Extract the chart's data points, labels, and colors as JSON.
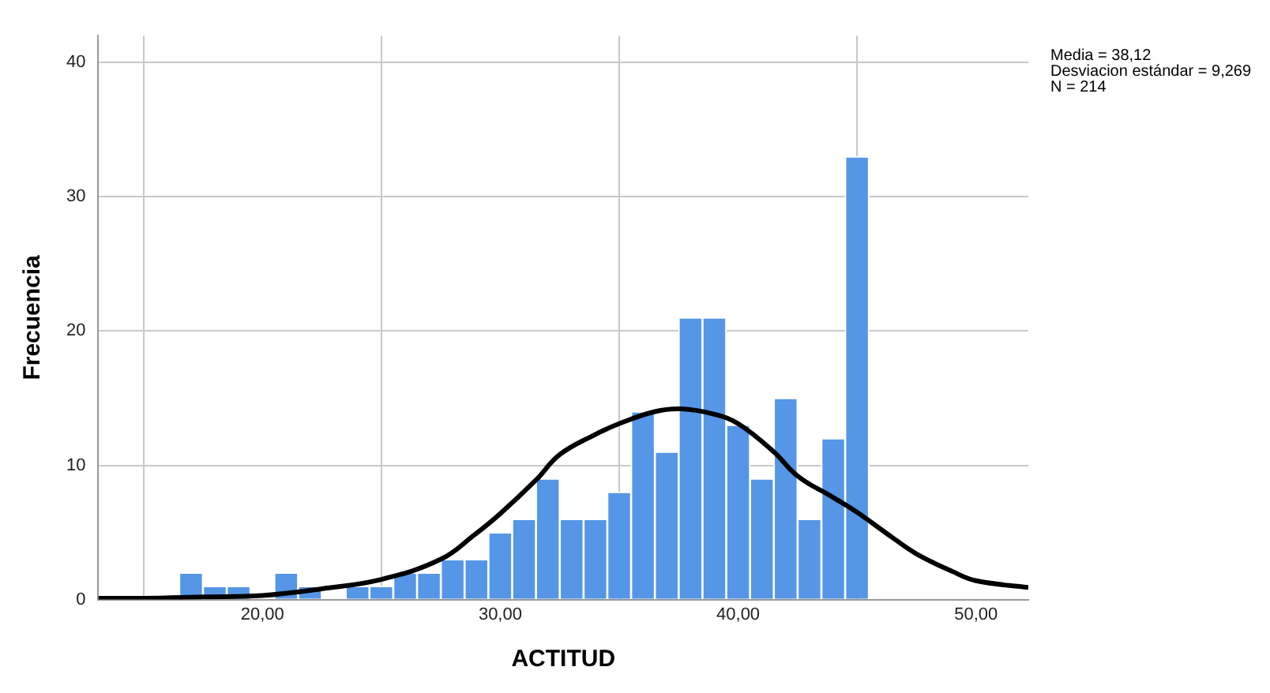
{
  "chart_data": {
    "type": "histogram",
    "xlabel": "ACTITUD",
    "ylabel": "Frecuencia",
    "bins": [
      16.5,
      17.5,
      18.5,
      19.5,
      20.5,
      21.5,
      22.5,
      23.5,
      24.5,
      25.5,
      26.5,
      27.5,
      28.5,
      29.5,
      30.5,
      31.5,
      32.5,
      33.5,
      34.5,
      35.5,
      36.5,
      37.5,
      38.5,
      39.5,
      40.5,
      41.5,
      42.5,
      43.5,
      44.5,
      45.5
    ],
    "values": [
      2,
      1,
      1,
      0,
      2,
      1,
      0,
      1,
      1,
      2,
      2,
      3,
      3,
      5,
      6,
      9,
      6,
      6,
      8,
      14,
      11,
      21,
      21,
      13,
      9,
      15,
      6,
      12,
      33
    ],
    "color": "#5596e6",
    "series": [
      {
        "type": "line",
        "color": "#000000",
        "marker": "none",
        "x": [
          13.1,
          15,
          17.5,
          20,
          22.5,
          25,
          27.5,
          28.9,
          30,
          31.5,
          32.5,
          34,
          35,
          36.5,
          37.6,
          39,
          40,
          41.5,
          42.5,
          44,
          45,
          46.5,
          47.5,
          49,
          50,
          52.2
        ],
        "values": [
          0.1,
          0.1,
          0.2,
          0.3,
          0.8,
          1.5,
          3,
          4.8,
          6.4,
          8.9,
          10.8,
          12.3,
          13.1,
          14,
          14.2,
          13.8,
          13.1,
          11,
          9.2,
          7.6,
          6.5,
          4.6,
          3.4,
          2.1,
          1.4,
          0.9
        ]
      }
    ],
    "xlim": [
      13.1,
      52.2
    ],
    "xticks": [
      {
        "value": 20,
        "label": "20,00"
      },
      {
        "value": 30,
        "label": "30,00"
      },
      {
        "value": 40,
        "label": "40,00"
      },
      {
        "value": 50,
        "label": "50,00"
      }
    ],
    "ylim": [
      0,
      42
    ],
    "yticks": [
      0,
      10,
      20,
      30,
      40
    ],
    "grid": true,
    "annotations": [
      "Media = 38,12",
      "Desviacion estándar = 9,269",
      "N = 214"
    ]
  }
}
